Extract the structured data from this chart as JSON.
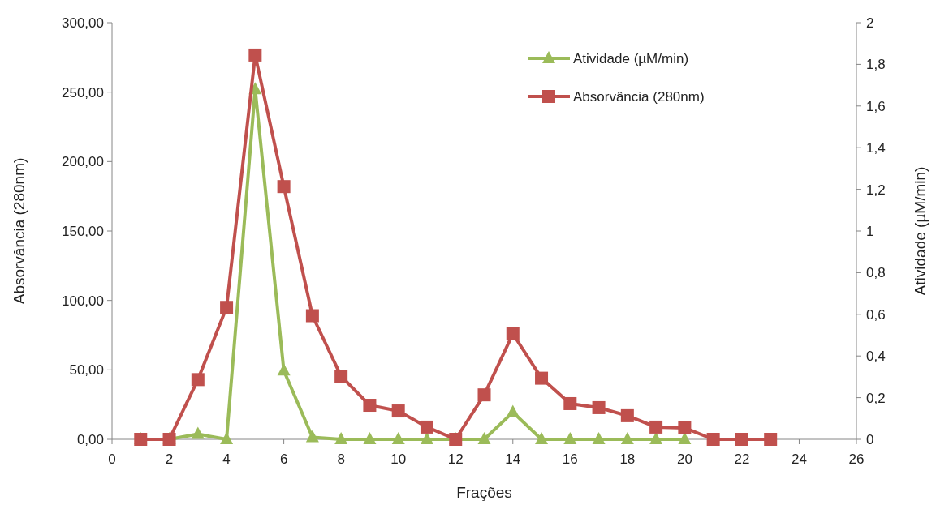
{
  "chart_data": {
    "type": "line",
    "xlabel": "Frações",
    "ylabel": "Absorvância (280nm)",
    "y2label": "Atividade (µM/min)",
    "xlim": [
      0,
      26
    ],
    "xticks": [
      0,
      2,
      4,
      6,
      8,
      10,
      12,
      14,
      16,
      18,
      20,
      22,
      24,
      26
    ],
    "ylim": [
      0,
      300
    ],
    "yticks": [
      {
        "value": 0,
        "label": "0,00"
      },
      {
        "value": 50,
        "label": "50,00"
      },
      {
        "value": 100,
        "label": "100,00"
      },
      {
        "value": 150,
        "label": "150,00"
      },
      {
        "value": 200,
        "label": "200,00"
      },
      {
        "value": 250,
        "label": "250,00"
      },
      {
        "value": 300,
        "label": "300,00"
      }
    ],
    "y2lim": [
      0,
      2
    ],
    "y2ticks": [
      0,
      {
        "value": 0.2,
        "label": "0,2"
      },
      {
        "value": 0.4,
        "label": "0,4"
      },
      {
        "value": 0.6,
        "label": "0,6"
      },
      {
        "value": 0.8,
        "label": "0,8"
      },
      1,
      {
        "value": 1.2,
        "label": "1,2"
      },
      {
        "value": 1.4,
        "label": "1,4"
      },
      {
        "value": 1.6,
        "label": "1,6"
      },
      {
        "value": 1.8,
        "label": "1,8"
      },
      2
    ],
    "legend": "top right",
    "grid": false,
    "series": [
      {
        "name": "Atividade (µM/min)",
        "color": "#9bbb59",
        "axis": "y2",
        "marker": "triangle",
        "x": [
          1,
          2,
          3,
          4,
          5,
          6,
          7,
          8,
          9,
          10,
          11,
          12,
          13,
          14,
          15,
          16,
          17,
          18,
          19,
          20
        ],
        "values": [
          0,
          0,
          0.025,
          0,
          1.68,
          0.33,
          0.01,
          0,
          0,
          0,
          0,
          0,
          0,
          0.13,
          0,
          0,
          0,
          0,
          0,
          0
        ]
      },
      {
        "name": "Absorvância (280nm)",
        "color": "#c0504d",
        "marker": "square",
        "x": [
          1,
          2,
          3,
          4,
          5,
          6,
          7,
          8,
          9,
          10,
          11,
          12,
          13,
          14,
          15,
          16,
          17,
          18,
          19,
          20,
          21,
          22,
          23
        ],
        "values": [
          0,
          0,
          43,
          95,
          276.7,
          182,
          89,
          45.5,
          24.5,
          20.4,
          8.8,
          0,
          32,
          76,
          44,
          25.7,
          22.8,
          17,
          8.8,
          8.2,
          0,
          0,
          0
        ]
      }
    ]
  }
}
